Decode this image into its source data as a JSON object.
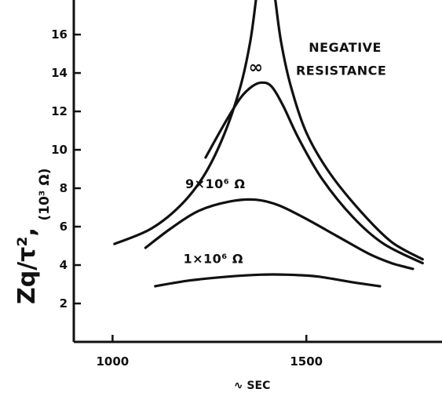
{
  "chart_data": {
    "type": "line",
    "title": "",
    "xlabel": "∿ SEC",
    "ylabel": "Zq/τ²,",
    "ylabel_unit": "(10³ Ω)",
    "xlim": [
      900,
      1850
    ],
    "ylim": [
      0,
      17.8
    ],
    "x_ticks": [
      1000,
      1500
    ],
    "x_tick_labels": [
      "1000",
      "1500"
    ],
    "y_ticks": [
      2,
      4,
      6,
      8,
      10,
      12,
      14,
      16
    ],
    "y_tick_labels": [
      "2",
      "4",
      "6",
      "8",
      "10",
      "12",
      "14",
      "16"
    ],
    "grid": false,
    "legend": "none",
    "series": [
      {
        "name": "NEGATIVE RESISTANCE",
        "segments": [
          [
            [
              1005,
              5.1
            ],
            [
              1100,
              5.9
            ],
            [
              1180,
              7.2
            ],
            [
              1240,
              8.8
            ],
            [
              1290,
              10.9
            ],
            [
              1330,
              13.3
            ],
            [
              1355,
              15.6
            ],
            [
              1370,
              17.8
            ]
          ],
          [
            [
              1420,
              17.8
            ],
            [
              1435,
              15.6
            ],
            [
              1460,
              13.3
            ],
            [
              1500,
              10.9
            ],
            [
              1560,
              8.8
            ],
            [
              1640,
              6.8
            ],
            [
              1720,
              5.2
            ],
            [
              1800,
              4.3
            ]
          ]
        ]
      },
      {
        "name": "∞",
        "segments": [
          [
            [
              1240,
              9.6
            ],
            [
              1290,
              11.4
            ],
            [
              1330,
              12.7
            ],
            [
              1360,
              13.3
            ],
            [
              1385,
              13.5
            ],
            [
              1410,
              13.3
            ],
            [
              1440,
              12.3
            ],
            [
              1480,
              10.6
            ],
            [
              1540,
              8.5
            ],
            [
              1620,
              6.5
            ],
            [
              1700,
              5.1
            ],
            [
              1800,
              4.1
            ]
          ]
        ]
      },
      {
        "name": "9×10⁶ Ω",
        "segments": [
          [
            [
              1085,
              4.9
            ],
            [
              1150,
              5.9
            ],
            [
              1220,
              6.8
            ],
            [
              1300,
              7.3
            ],
            [
              1370,
              7.4
            ],
            [
              1430,
              7.1
            ],
            [
              1500,
              6.4
            ],
            [
              1580,
              5.5
            ],
            [
              1660,
              4.6
            ],
            [
              1720,
              4.1
            ],
            [
              1775,
              3.8
            ]
          ]
        ]
      },
      {
        "name": "1×10⁶ Ω",
        "segments": [
          [
            [
              1110,
              2.9
            ],
            [
              1200,
              3.2
            ],
            [
              1300,
              3.4
            ],
            [
              1380,
              3.5
            ],
            [
              1450,
              3.5
            ],
            [
              1530,
              3.4
            ],
            [
              1620,
              3.1
            ],
            [
              1690,
              2.9
            ]
          ]
        ]
      }
    ],
    "annotations": [
      {
        "id": "negative-resistance-1",
        "text": "NEGATIVE",
        "x": 1600,
        "y": 15.1
      },
      {
        "id": "negative-resistance-2",
        "text": "RESISTANCE",
        "x": 1590,
        "y": 13.9
      },
      {
        "id": "infinity",
        "text": "∞",
        "x": 1370,
        "y": 14.0
      },
      {
        "id": "nine-meg",
        "text": "9×10⁶ Ω",
        "x": 1265,
        "y": 8.0
      },
      {
        "id": "one-meg",
        "text": "1×10⁶ Ω",
        "x": 1260,
        "y": 4.1
      }
    ]
  }
}
